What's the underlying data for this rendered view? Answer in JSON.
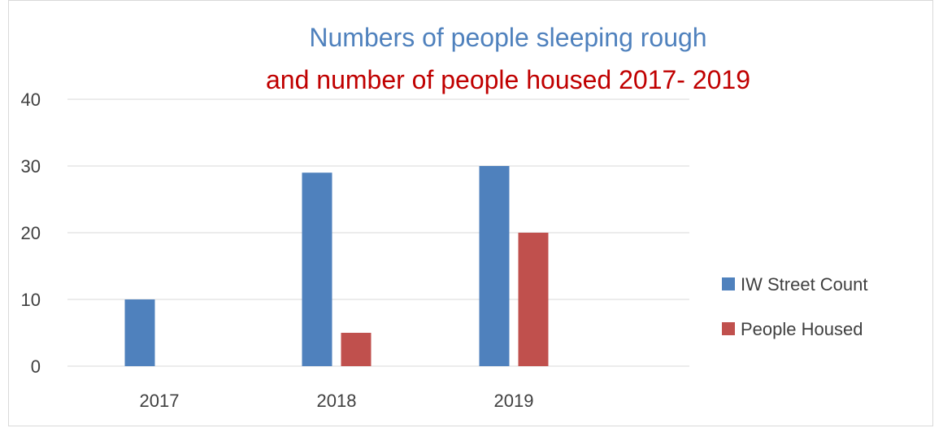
{
  "colors": {
    "series_1": "#4f81bd",
    "series_2": "#c0504d",
    "title_line_1": "#4f81bd",
    "title_line_2": "#c00000",
    "grid": "#d9d9d9"
  },
  "chart_data": {
    "type": "bar",
    "title": "Numbers of people sleeping rough",
    "subtitle": "and number of people housed 2017- 2019",
    "categories": [
      "2017",
      "2018",
      "2019"
    ],
    "series": [
      {
        "name": "IW Street Count",
        "values": [
          10,
          29,
          30
        ]
      },
      {
        "name": "People Housed",
        "values": [
          0,
          5,
          20
        ]
      }
    ],
    "ylim": [
      0,
      40
    ],
    "yticks": [
      "0",
      "10",
      "20",
      "30",
      "40"
    ],
    "grid": true,
    "legend_position": "right"
  }
}
